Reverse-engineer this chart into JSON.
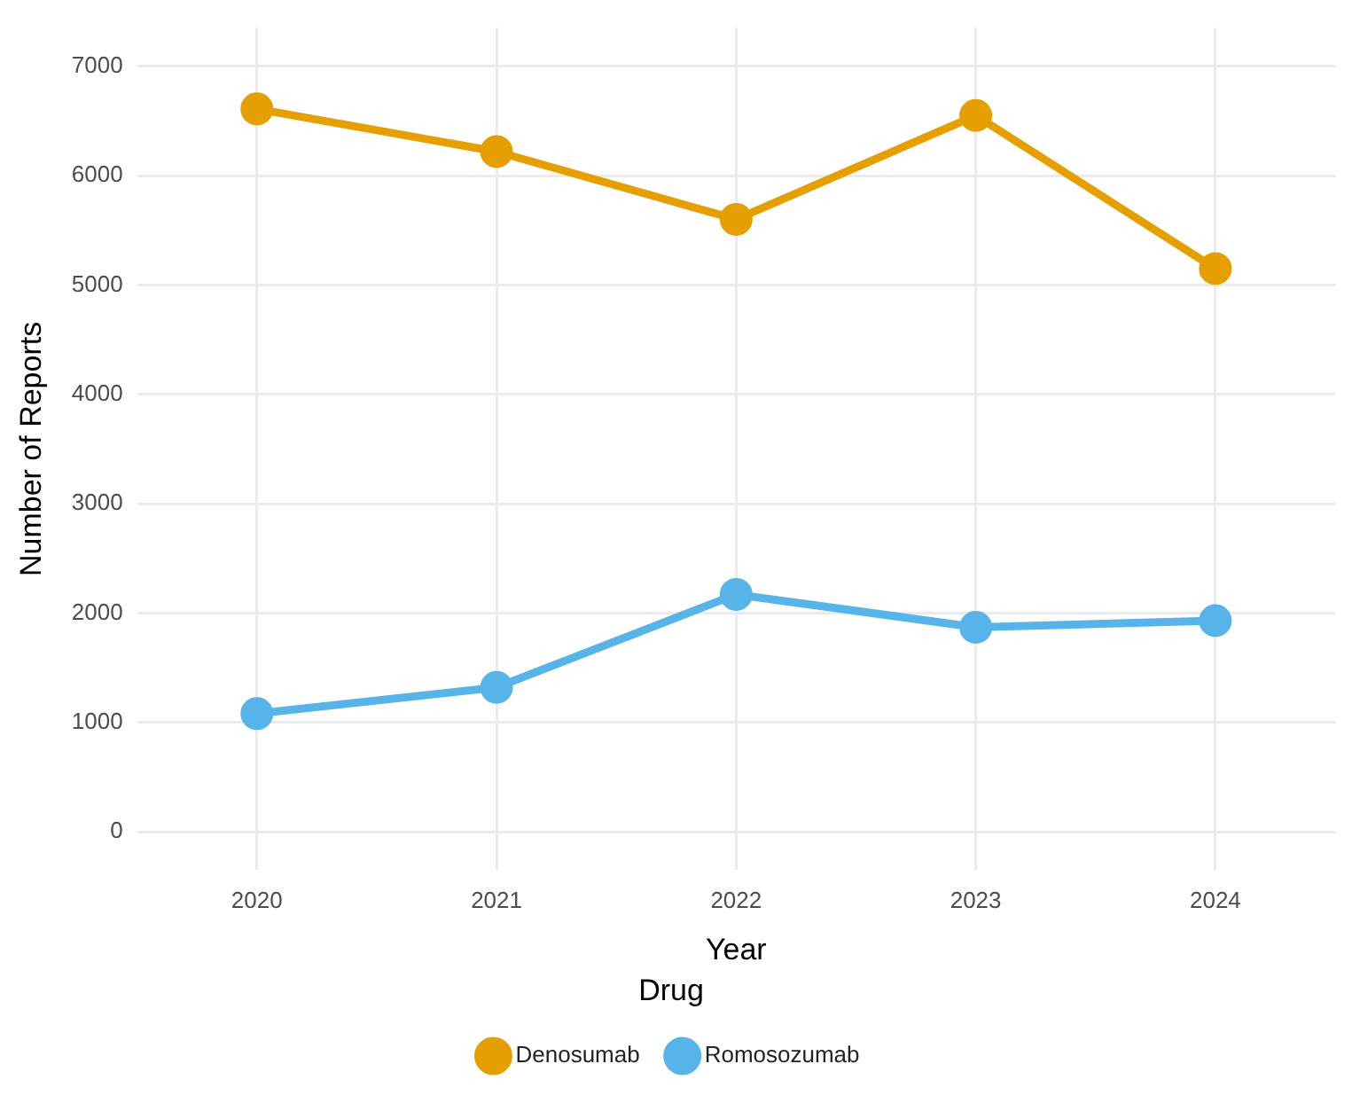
{
  "chart_data": {
    "type": "line",
    "xlabel": "Year",
    "ylabel": "Number of Reports",
    "legend_title": "Drug",
    "categories": [
      "2020",
      "2021",
      "2022",
      "2023",
      "2024"
    ],
    "series": [
      {
        "name": "Denosumab",
        "color": "#e69f00",
        "values": [
          6610,
          6220,
          5600,
          6550,
          5150
        ]
      },
      {
        "name": "Romosozumab",
        "color": "#56b4e9",
        "values": [
          1080,
          1320,
          2170,
          1870,
          1930
        ]
      }
    ],
    "ylim": [
      -350,
      7350
    ],
    "yticks": [
      0,
      1000,
      2000,
      3000,
      4000,
      5000,
      6000,
      7000
    ],
    "grid": true,
    "legend": "bottom",
    "marker": "circle",
    "line_style": "solid"
  }
}
